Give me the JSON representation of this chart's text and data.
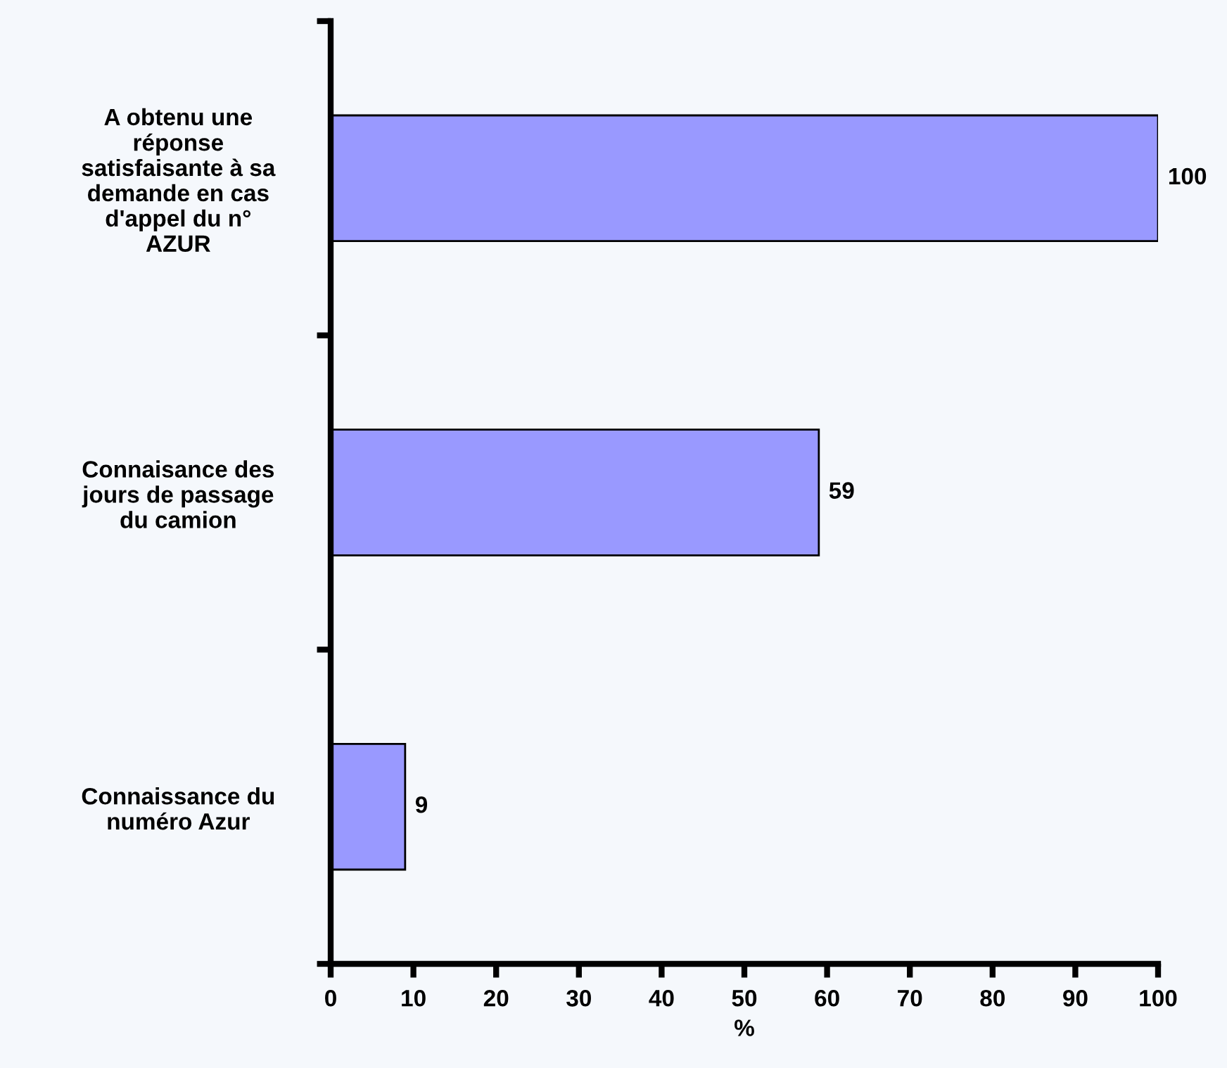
{
  "chart_data": {
    "type": "bar",
    "orientation": "horizontal",
    "xlabel": "%",
    "categories": [
      "A obtenu une\nréponse\nsatisfaisante à sa\ndemande en cas\nd'appel du n°\nAZUR",
      "Connaisance des\njours de passage\ndu camion",
      "Connaissance du\nnuméro Azur"
    ],
    "values": [
      100,
      59,
      9
    ],
    "color": "#9999ff",
    "data_labels": true,
    "xlim": [
      0,
      100
    ],
    "xticks": [
      0,
      10,
      20,
      30,
      40,
      50,
      60,
      70,
      80,
      90,
      100
    ],
    "grid": false,
    "legend": false
  }
}
